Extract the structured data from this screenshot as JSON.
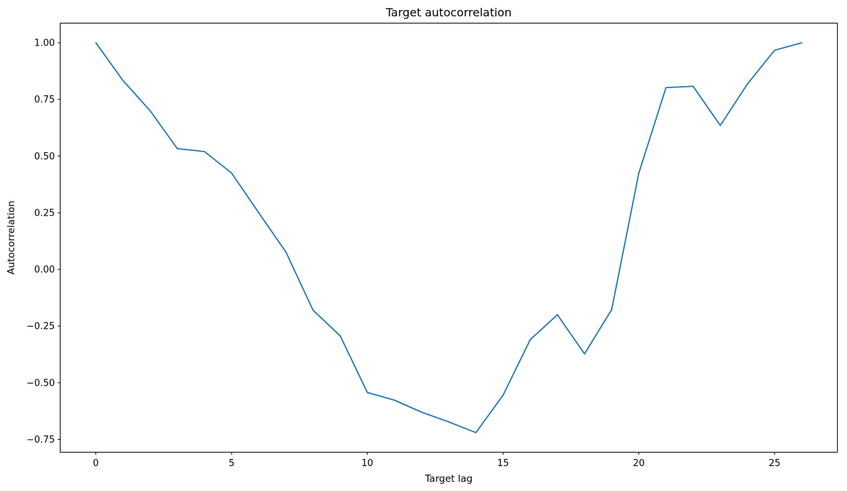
{
  "chart_data": {
    "type": "line",
    "title": "Target autocorrelation",
    "xlabel": "Target lag",
    "ylabel": "Autocorrelation",
    "xlim": [
      -1.3,
      27.3
    ],
    "ylim": [
      -0.805,
      1.085
    ],
    "xticks": [
      0,
      5,
      10,
      15,
      20,
      25
    ],
    "xtick_labels": [
      "0",
      "5",
      "10",
      "15",
      "20",
      "25"
    ],
    "yticks": [
      -0.75,
      -0.5,
      -0.25,
      0.0,
      0.25,
      0.5,
      0.75,
      1.0
    ],
    "ytick_labels": [
      "−0.75",
      "−0.50",
      "−0.25",
      "0.00",
      "0.25",
      "0.50",
      "0.75",
      "1.00"
    ],
    "grid": false,
    "series": [
      {
        "color": "#1f77b4",
        "x": [
          0,
          1,
          2,
          3,
          4,
          5,
          6,
          7,
          8,
          9,
          10,
          11,
          12,
          13,
          14,
          15,
          16,
          17,
          18,
          19,
          20,
          21,
          22,
          23,
          24,
          25,
          26
        ],
        "y": [
          1.0,
          0.833,
          0.7,
          0.533,
          0.52,
          0.425,
          0.25,
          0.077,
          -0.18,
          -0.293,
          -0.543,
          -0.577,
          -0.63,
          -0.673,
          -0.72,
          -0.555,
          -0.31,
          -0.2,
          -0.373,
          -0.177,
          0.425,
          0.802,
          0.808,
          0.635,
          0.818,
          0.967,
          1.0
        ]
      }
    ]
  }
}
